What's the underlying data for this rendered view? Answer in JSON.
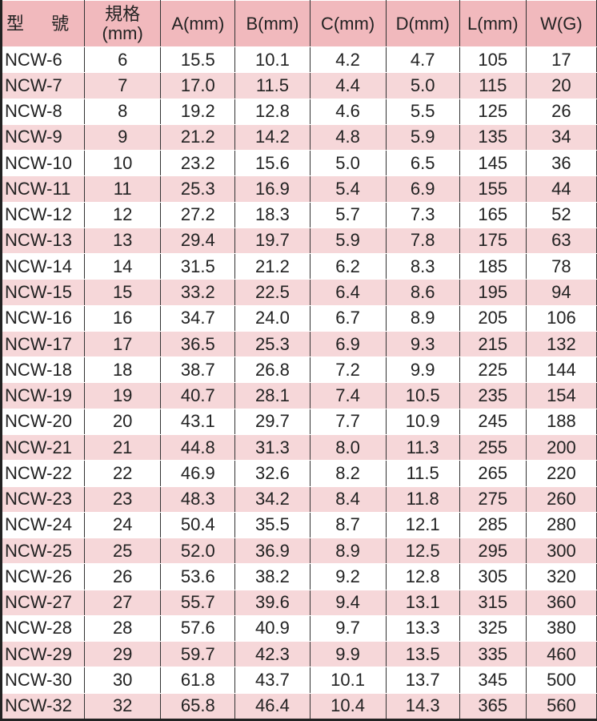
{
  "colors": {
    "header_bg": "#f1b9bd",
    "alt_row_bg": "#f6d7d9"
  },
  "headers": [
    "型 號",
    "規格\n(mm)",
    "A(mm)",
    "B(mm)",
    "C(mm)",
    "D(mm)",
    "L(mm)",
    "W(G)"
  ],
  "header_spec_line1": "規格",
  "header_spec_line2": "(mm)",
  "rows": [
    [
      "NCW-6",
      "6",
      "15.5",
      "10.1",
      "4.2",
      "4.7",
      "105",
      "17"
    ],
    [
      "NCW-7",
      "7",
      "17.0",
      "11.5",
      "4.4",
      "5.0",
      "115",
      "20"
    ],
    [
      "NCW-8",
      "8",
      "19.2",
      "12.8",
      "4.6",
      "5.5",
      "125",
      "26"
    ],
    [
      "NCW-9",
      "9",
      "21.2",
      "14.2",
      "4.8",
      "5.9",
      "135",
      "34"
    ],
    [
      "NCW-10",
      "10",
      "23.2",
      "15.6",
      "5.0",
      "6.5",
      "145",
      "36"
    ],
    [
      "NCW-11",
      "11",
      "25.3",
      "16.9",
      "5.4",
      "6.9",
      "155",
      "44"
    ],
    [
      "NCW-12",
      "12",
      "27.2",
      "18.3",
      "5.7",
      "7.3",
      "165",
      "52"
    ],
    [
      "NCW-13",
      "13",
      "29.4",
      "19.7",
      "5.9",
      "7.8",
      "175",
      "63"
    ],
    [
      "NCW-14",
      "14",
      "31.5",
      "21.2",
      "6.2",
      "8.3",
      "185",
      "78"
    ],
    [
      "NCW-15",
      "15",
      "33.2",
      "22.5",
      "6.4",
      "8.6",
      "195",
      "94"
    ],
    [
      "NCW-16",
      "16",
      "34.7",
      "24.0",
      "6.7",
      "8.9",
      "205",
      "106"
    ],
    [
      "NCW-17",
      "17",
      "36.5",
      "25.3",
      "6.9",
      "9.3",
      "215",
      "132"
    ],
    [
      "NCW-18",
      "18",
      "38.7",
      "26.8",
      "7.2",
      "9.9",
      "225",
      "144"
    ],
    [
      "NCW-19",
      "19",
      "40.7",
      "28.1",
      "7.4",
      "10.5",
      "235",
      "154"
    ],
    [
      "NCW-20",
      "20",
      "43.1",
      "29.7",
      "7.7",
      "10.9",
      "245",
      "188"
    ],
    [
      "NCW-21",
      "21",
      "44.8",
      "31.3",
      "8.0",
      "11.3",
      "255",
      "200"
    ],
    [
      "NCW-22",
      "22",
      "46.9",
      "32.6",
      "8.2",
      "11.5",
      "265",
      "220"
    ],
    [
      "NCW-23",
      "23",
      "48.3",
      "34.2",
      "8.4",
      "11.8",
      "275",
      "260"
    ],
    [
      "NCW-24",
      "24",
      "50.4",
      "35.5",
      "8.7",
      "12.1",
      "285",
      "280"
    ],
    [
      "NCW-25",
      "25",
      "52.0",
      "36.9",
      "8.9",
      "12.5",
      "295",
      "300"
    ],
    [
      "NCW-26",
      "26",
      "53.6",
      "38.2",
      "9.2",
      "12.8",
      "305",
      "320"
    ],
    [
      "NCW-27",
      "27",
      "55.7",
      "39.6",
      "9.4",
      "13.1",
      "315",
      "360"
    ],
    [
      "NCW-28",
      "28",
      "57.6",
      "40.9",
      "9.7",
      "13.3",
      "325",
      "380"
    ],
    [
      "NCW-29",
      "29",
      "59.7",
      "42.3",
      "9.9",
      "13.5",
      "335",
      "460"
    ],
    [
      "NCW-30",
      "30",
      "61.8",
      "43.7",
      "10.1",
      "13.7",
      "345",
      "500"
    ],
    [
      "NCW-32",
      "32",
      "65.8",
      "46.4",
      "10.4",
      "14.3",
      "365",
      "560"
    ]
  ]
}
